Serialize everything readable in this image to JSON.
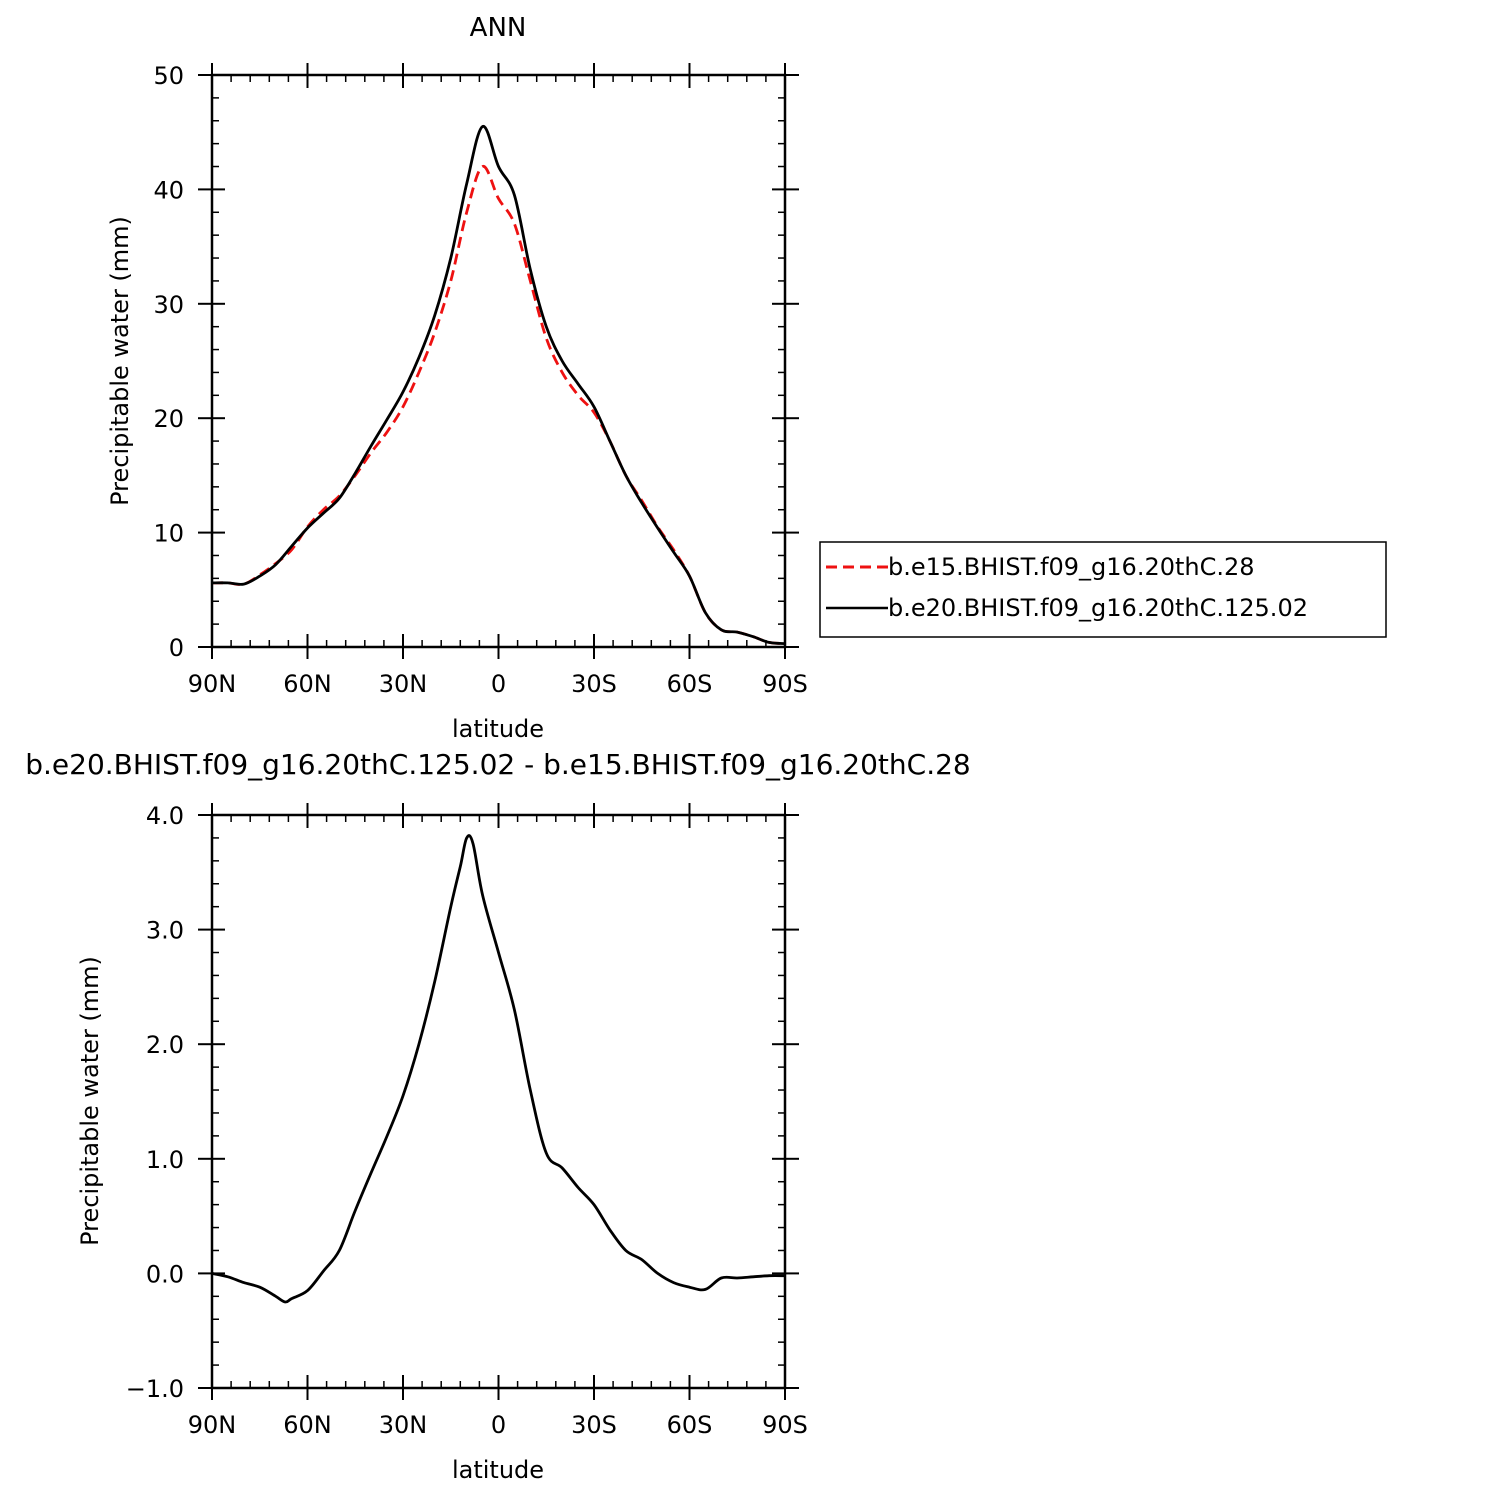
{
  "chart_data": [
    {
      "type": "line",
      "title": "ANN",
      "xlabel": "latitude",
      "ylabel": "Precipitable water (mm)",
      "xlim": [
        90,
        -90
      ],
      "ylim": [
        0,
        50
      ],
      "xticks": [
        {
          "value": 90,
          "label": "90N"
        },
        {
          "value": 60,
          "label": "60N"
        },
        {
          "value": 30,
          "label": "30N"
        },
        {
          "value": 0,
          "label": "0"
        },
        {
          "value": -30,
          "label": "30S"
        },
        {
          "value": -60,
          "label": "60S"
        },
        {
          "value": -90,
          "label": "90S"
        }
      ],
      "yticks": [
        {
          "value": 0,
          "label": "0"
        },
        {
          "value": 10,
          "label": "10"
        },
        {
          "value": 20,
          "label": "20"
        },
        {
          "value": 30,
          "label": "30"
        },
        {
          "value": 40,
          "label": "40"
        },
        {
          "value": 50,
          "label": "50"
        }
      ],
      "grid": false,
      "legend": "right",
      "x": [
        90,
        85,
        80,
        75,
        70,
        65,
        60,
        55,
        50,
        45,
        40,
        35,
        30,
        25,
        20,
        15,
        10,
        5,
        0,
        -5,
        -10,
        -15,
        -20,
        -25,
        -30,
        -35,
        -40,
        -45,
        -50,
        -55,
        -60,
        -65,
        -70,
        -75,
        -80,
        -85,
        -90
      ],
      "series": [
        {
          "name": "b.e15.BHIST.f09_g16.20thC.28",
          "color": "#ee1111",
          "dash": "dashed",
          "values": [
            5.6,
            5.6,
            5.5,
            6.3,
            7.3,
            8.5,
            10.5,
            12.0,
            13.2,
            15.0,
            17.0,
            18.8,
            21.0,
            24.0,
            27.5,
            32.0,
            38.0,
            42.0,
            39.2,
            37.0,
            32.0,
            27.0,
            24.0,
            22.0,
            20.5,
            18.0,
            15.0,
            12.8,
            10.5,
            8.5,
            6.2,
            3.0,
            1.5,
            1.3,
            0.9,
            0.4,
            0.3
          ]
        },
        {
          "name": "b.e20.BHIST.f09_g16.20thC.125.02",
          "color": "#000000",
          "dash": "solid",
          "values": [
            5.6,
            5.6,
            5.5,
            6.2,
            7.2,
            8.8,
            10.4,
            11.7,
            13.0,
            15.2,
            17.6,
            19.9,
            22.3,
            25.3,
            29.0,
            34.0,
            40.5,
            45.5,
            42.0,
            39.5,
            33.0,
            28.0,
            25.0,
            23.0,
            21.0,
            18.0,
            15.0,
            12.6,
            10.4,
            8.3,
            6.2,
            3.0,
            1.5,
            1.3,
            0.9,
            0.4,
            0.3
          ]
        }
      ]
    },
    {
      "type": "line",
      "title": "b.e20.BHIST.f09_g16.20thC.125.02 - b.e15.BHIST.f09_g16.20thC.28",
      "xlabel": "latitude",
      "ylabel": "Precipitable water (mm)",
      "xlim": [
        90,
        -90
      ],
      "ylim": [
        -1.0,
        4.0
      ],
      "xticks": [
        {
          "value": 90,
          "label": "90N"
        },
        {
          "value": 60,
          "label": "60N"
        },
        {
          "value": 30,
          "label": "30N"
        },
        {
          "value": 0,
          "label": "0"
        },
        {
          "value": -30,
          "label": "30S"
        },
        {
          "value": -60,
          "label": "60S"
        },
        {
          "value": -90,
          "label": "90S"
        }
      ],
      "yticks": [
        {
          "value": -1.0,
          "label": "−1.0"
        },
        {
          "value": 0.0,
          "label": "0.0"
        },
        {
          "value": 1.0,
          "label": "1.0"
        },
        {
          "value": 2.0,
          "label": "2.0"
        },
        {
          "value": 3.0,
          "label": "3.0"
        },
        {
          "value": 4.0,
          "label": "4.0"
        }
      ],
      "grid": false,
      "x": [
        90,
        85,
        80,
        75,
        70,
        67,
        65,
        60,
        55,
        50,
        45,
        40,
        35,
        30,
        25,
        20,
        15,
        12,
        10,
        8,
        5,
        0,
        -5,
        -10,
        -15,
        -20,
        -25,
        -30,
        -35,
        -40,
        -45,
        -50,
        -55,
        -60,
        -65,
        -70,
        -75,
        -80,
        -85,
        -90
      ],
      "series": [
        {
          "name": "",
          "color": "#000000",
          "dash": "solid",
          "values": [
            0.0,
            -0.03,
            -0.08,
            -0.12,
            -0.2,
            -0.25,
            -0.22,
            -0.15,
            0.02,
            0.2,
            0.55,
            0.88,
            1.2,
            1.55,
            2.0,
            2.55,
            3.2,
            3.55,
            3.8,
            3.75,
            3.3,
            2.8,
            2.3,
            1.6,
            1.05,
            0.92,
            0.75,
            0.6,
            0.38,
            0.2,
            0.12,
            0.0,
            -0.08,
            -0.12,
            -0.14,
            -0.04,
            -0.04,
            -0.03,
            -0.02,
            -0.02
          ]
        }
      ]
    }
  ]
}
